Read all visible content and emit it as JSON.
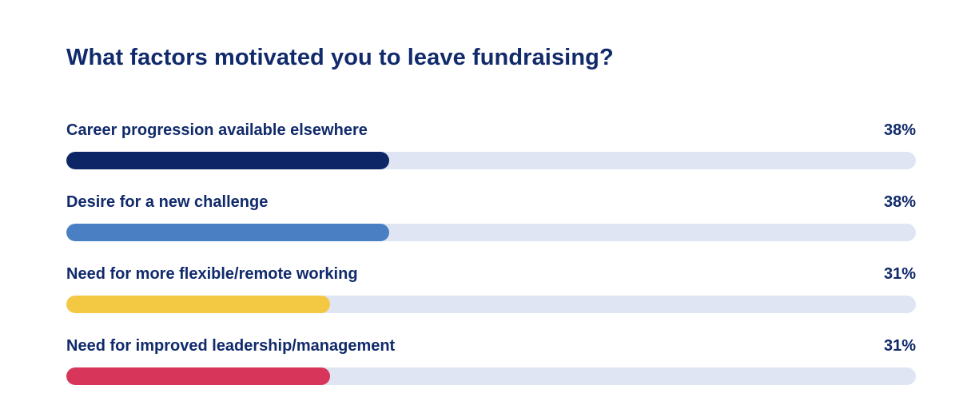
{
  "chart_data": {
    "type": "bar",
    "orientation": "horizontal",
    "title": "What factors motivated you to leave fundraising?",
    "xlim": [
      0,
      100
    ],
    "unit": "%",
    "categories": [
      "Career progression available elsewhere",
      "Desire for a new challenge",
      "Need for more flexible/remote working",
      "Need for improved leadership/management"
    ],
    "values": [
      38,
      38,
      31,
      31
    ],
    "value_labels": [
      "38%",
      "38%",
      "31%",
      "31%"
    ],
    "colors": [
      "#0d2766",
      "#4a80c3",
      "#f3c944",
      "#d8355a"
    ],
    "track_color": "#e0e5f3",
    "text_color": "#112a6b"
  }
}
